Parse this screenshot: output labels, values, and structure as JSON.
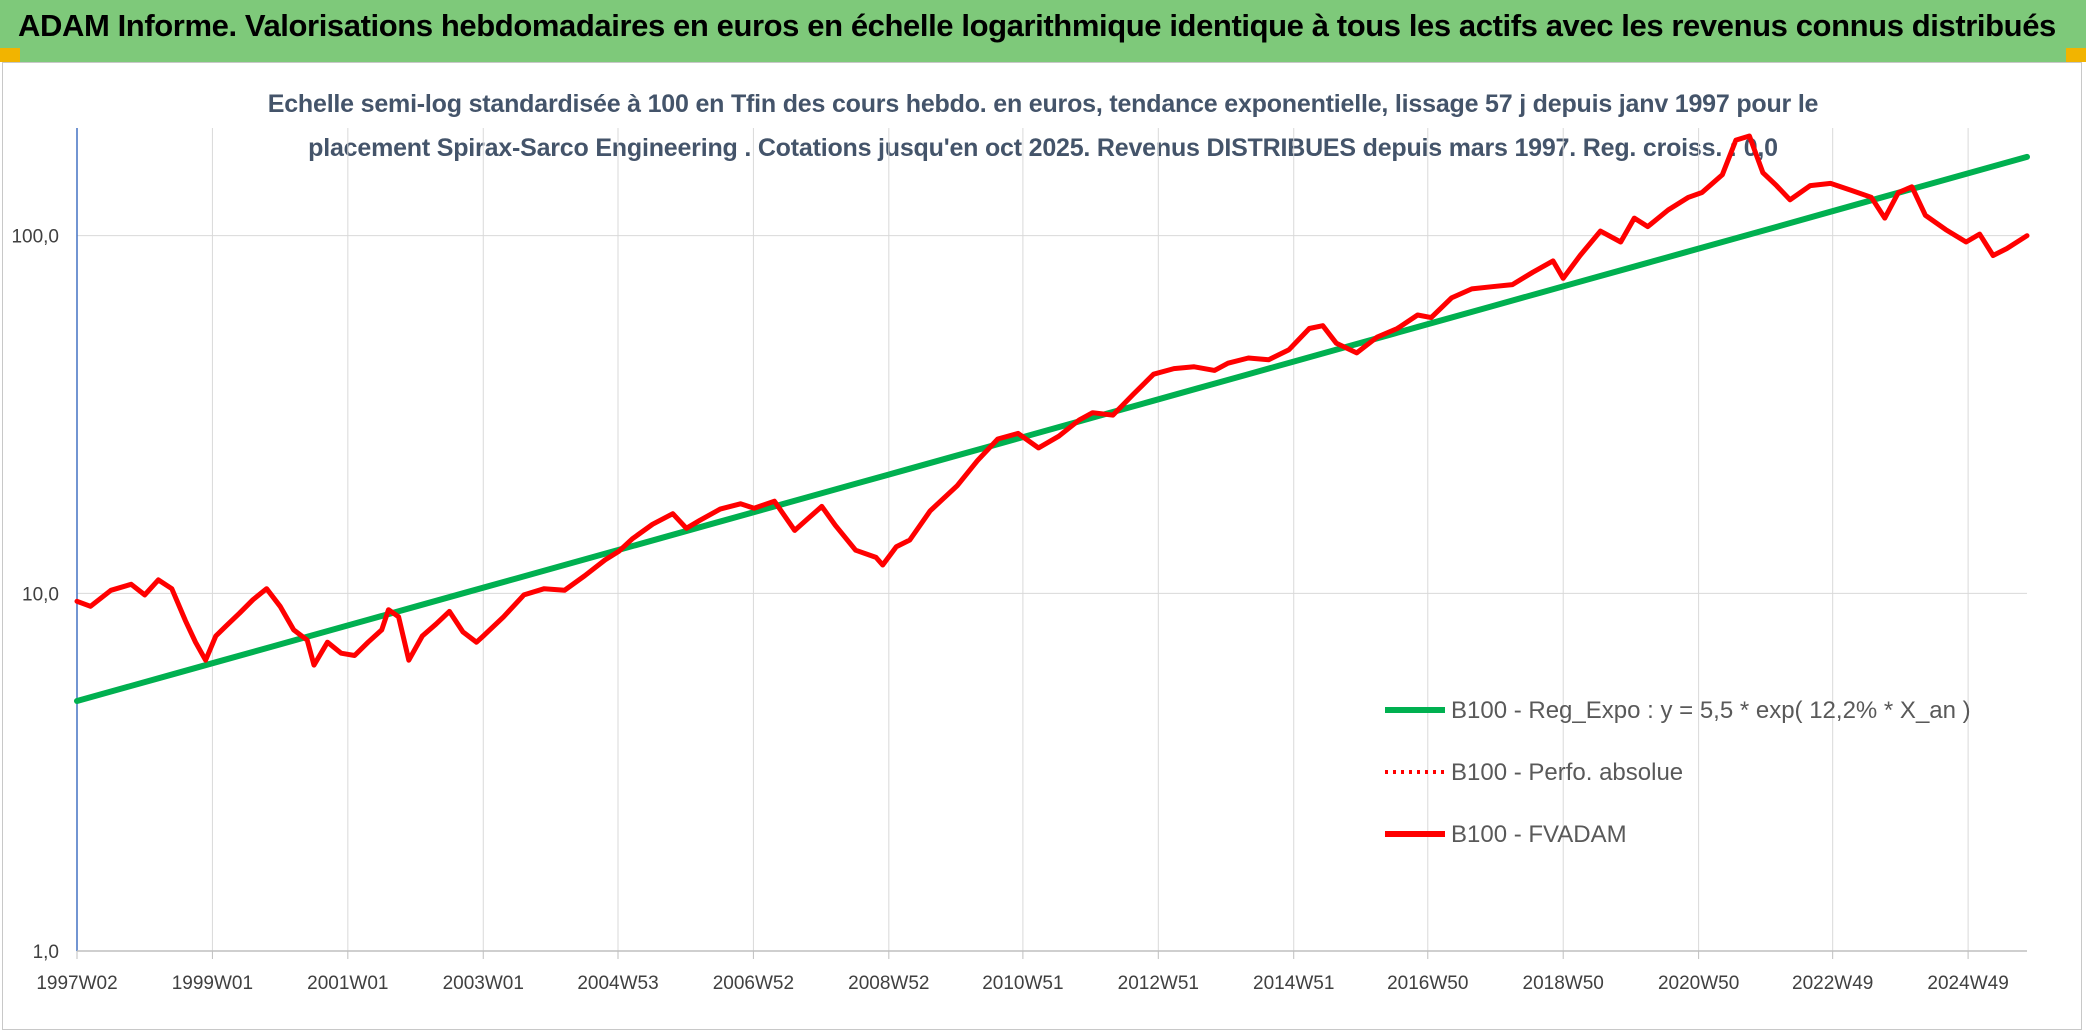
{
  "banner": {
    "title": "ADAM Informe. Valorisations hebdomadaires en euros en échelle logarithmique identique à tous les actifs avec les revenus connus distribués"
  },
  "colors": {
    "banner": "#7ec97a",
    "corner": "#f2b400",
    "trend": "#00b050",
    "fvadam": "#ff0000",
    "subtitle": "#44546a",
    "grid": "#d9d9d9"
  },
  "chart_data": {
    "type": "line",
    "title": "",
    "subtitle_lines": [
      "Echelle semi-log standardisée à 100 en Tfin des cours hebdo. en euros, tendance exponentielle, lissage 57 j depuis janv 1997 pour le",
      "placement Spirax-Sarco Engineering . Cotations jusqu'en oct 2025. Revenus DISTRIBUES depuis mars 1997. Reg. croiss. : 0,0"
    ],
    "xlabel": "",
    "ylabel": "",
    "y_scale": "log",
    "ylim": [
      1,
      200
    ],
    "xlim": [
      1997.0,
      2025.8
    ],
    "y_ticks": [
      {
        "value": 1,
        "label": "1,0"
      },
      {
        "value": 10,
        "label": "10,0"
      },
      {
        "value": 100,
        "label": "100,0"
      }
    ],
    "x_ticks": [
      {
        "value": 1997.0,
        "label": "1997W02"
      },
      {
        "value": 1999.0,
        "label": "1999W01"
      },
      {
        "value": 2001.0,
        "label": "2001W01"
      },
      {
        "value": 2003.0,
        "label": "2003W01"
      },
      {
        "value": 2004.99,
        "label": "2004W53"
      },
      {
        "value": 2006.99,
        "label": "2006W52"
      },
      {
        "value": 2008.99,
        "label": "2008W52"
      },
      {
        "value": 2010.97,
        "label": "2010W51"
      },
      {
        "value": 2012.97,
        "label": "2012W51"
      },
      {
        "value": 2014.97,
        "label": "2014W51"
      },
      {
        "value": 2016.95,
        "label": "2016W50"
      },
      {
        "value": 2018.95,
        "label": "2018W50"
      },
      {
        "value": 2020.95,
        "label": "2020W50"
      },
      {
        "value": 2022.93,
        "label": "2022W49"
      },
      {
        "value": 2024.93,
        "label": "2024W49"
      }
    ],
    "grid": true,
    "legend_position": "bottom-right",
    "series": [
      {
        "name": "B100 - Reg_Expo : y = 5,5 * exp( 12,2% *  X_an )",
        "style": "solid",
        "x": [
          1997.0,
          2025.8
        ],
        "y": [
          5.0,
          166.0
        ]
      },
      {
        "name": "B100 - Perfo. absolue",
        "style": "dotted",
        "x": [],
        "y": []
      },
      {
        "name": "B100 - FVADAM",
        "style": "solid",
        "x": [
          1997.0,
          1997.2,
          1997.5,
          1997.8,
          1998.0,
          1998.2,
          1998.4,
          1998.6,
          1998.75,
          1998.9,
          1999.05,
          1999.2,
          1999.4,
          1999.6,
          1999.8,
          2000.0,
          2000.2,
          2000.4,
          2000.5,
          2000.7,
          2000.9,
          2001.1,
          2001.3,
          2001.5,
          2001.6,
          2001.75,
          2001.9,
          2002.1,
          2002.3,
          2002.5,
          2002.7,
          2002.9,
          2003.0,
          2003.3,
          2003.6,
          2003.9,
          2004.2,
          2004.5,
          2004.8,
          2005.0,
          2005.2,
          2005.5,
          2005.8,
          2006.0,
          2006.2,
          2006.5,
          2006.8,
          2007.0,
          2007.3,
          2007.6,
          2007.8,
          2008.0,
          2008.2,
          2008.5,
          2008.8,
          2008.9,
          2009.1,
          2009.3,
          2009.6,
          2010.0,
          2010.3,
          2010.6,
          2010.9,
          2011.2,
          2011.5,
          2011.8,
          2012.0,
          2012.3,
          2012.6,
          2012.9,
          2013.2,
          2013.5,
          2013.8,
          2014.0,
          2014.3,
          2014.6,
          2014.9,
          2015.2,
          2015.4,
          2015.6,
          2015.9,
          2016.2,
          2016.5,
          2016.8,
          2017.0,
          2017.3,
          2017.6,
          2017.9,
          2018.2,
          2018.5,
          2018.8,
          2018.95,
          2019.2,
          2019.5,
          2019.8,
          2020.0,
          2020.2,
          2020.5,
          2020.8,
          2021.0,
          2021.3,
          2021.5,
          2021.7,
          2021.9,
          2022.1,
          2022.3,
          2022.6,
          2022.9,
          2023.2,
          2023.5,
          2023.7,
          2023.9,
          2024.1,
          2024.3,
          2024.6,
          2024.9,
          2025.1,
          2025.3,
          2025.5,
          2025.8
        ],
        "y": [
          9.5,
          9.2,
          10.2,
          10.6,
          9.9,
          10.9,
          10.3,
          8.4,
          7.3,
          6.5,
          7.6,
          8.1,
          8.8,
          9.6,
          10.3,
          9.2,
          7.9,
          7.4,
          6.3,
          7.3,
          6.8,
          6.7,
          7.3,
          7.9,
          9.0,
          8.6,
          6.5,
          7.6,
          8.2,
          8.9,
          7.8,
          7.3,
          7.6,
          8.6,
          9.9,
          10.3,
          10.2,
          11.2,
          12.4,
          13.1,
          14.2,
          15.6,
          16.7,
          15.2,
          16.0,
          17.2,
          17.8,
          17.3,
          18.1,
          15.0,
          16.2,
          17.5,
          15.5,
          13.2,
          12.6,
          12.0,
          13.5,
          14.1,
          17.0,
          20.0,
          23.5,
          27.0,
          28.0,
          25.5,
          27.5,
          30.5,
          32.0,
          31.5,
          36.0,
          41.0,
          42.5,
          43.0,
          42.0,
          44.0,
          45.5,
          45.0,
          48.0,
          55.0,
          56.0,
          50.0,
          47.0,
          52.0,
          55.0,
          60.0,
          59.0,
          67.0,
          71.0,
          72.0,
          73.0,
          79.0,
          85.0,
          76.0,
          88.0,
          103.0,
          96.0,
          112.0,
          106.0,
          118.0,
          128.0,
          132.0,
          148.0,
          185.0,
          190.0,
          150.0,
          138.0,
          126.0,
          138.0,
          140.0,
          134.0,
          128.0,
          112.0,
          132.0,
          137.0,
          114.0,
          104.0,
          96.0,
          101.0,
          88.0,
          92.0,
          100.0
        ]
      }
    ]
  }
}
